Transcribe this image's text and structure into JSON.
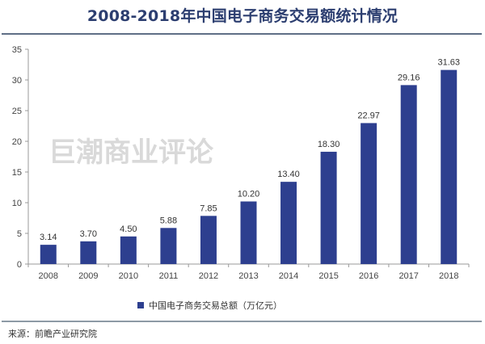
{
  "header": {
    "title": "2008-2018年中国电子商务交易额统计情况"
  },
  "watermark": "巨潮商业评论",
  "footer": {
    "source": "来源：前瞻产业研究院"
  },
  "colors": {
    "bar": "#2d3f8f",
    "title": "#2c3e70",
    "axis": "#999999"
  },
  "chart_data": {
    "type": "bar",
    "title": "2008-2018年中国电子商务交易额统计情况",
    "xlabel": "",
    "ylabel": "",
    "categories": [
      "2008",
      "2009",
      "2010",
      "2011",
      "2012",
      "2013",
      "2014",
      "2015",
      "2016",
      "2017",
      "2018"
    ],
    "series": [
      {
        "name": "中国电子商务交易总额（万亿元）",
        "values": [
          3.14,
          3.7,
          4.5,
          5.88,
          7.85,
          10.2,
          13.4,
          18.3,
          22.97,
          29.16,
          31.63
        ]
      }
    ],
    "value_labels": [
      "3.14",
      "3.70",
      "4.50",
      "5.88",
      "7.85",
      "10.20",
      "13.40",
      "18.30",
      "22.97",
      "29.16",
      "31.63"
    ],
    "ylim": [
      0,
      35
    ],
    "yticks": [
      0,
      5,
      10,
      15,
      20,
      25,
      30,
      35
    ],
    "ytick_labels": [
      "0",
      "5",
      "10",
      "15",
      "20",
      "25",
      "30",
      "35"
    ],
    "grid": false,
    "legend": {
      "position": "bottom-center",
      "entries": [
        "中国电子商务交易总额（万亿元）"
      ]
    }
  }
}
